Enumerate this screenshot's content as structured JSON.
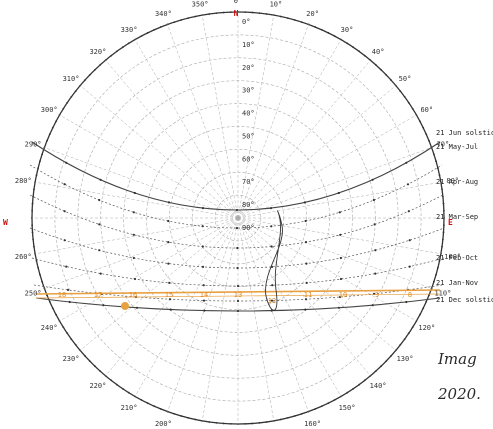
{
  "cardinals": {
    "north": "N",
    "east": "E",
    "west": "W"
  },
  "azimuth_labels": [
    "0°",
    "10°",
    "20°",
    "30°",
    "40°",
    "50°",
    "60°",
    "70°",
    "80°",
    "100°",
    "110°",
    "120°",
    "130°",
    "140°",
    "150°",
    "160°",
    "200°",
    "210°",
    "220°",
    "230°",
    "240°",
    "250°",
    "260°",
    "280°",
    "290°",
    "300°",
    "310°",
    "320°",
    "330°",
    "340°",
    "350°"
  ],
  "altitude_labels": [
    "0°",
    "10°",
    "20°",
    "30°",
    "40°",
    "50°",
    "60°",
    "70°",
    "80°",
    "90°"
  ],
  "date_curves": [
    "21 Jun solstice",
    "21 May-Jul",
    "21 Apr-Aug",
    "21 Mar-Sep",
    "21 Feb-Oct",
    "21 Jan-Nov",
    "21 Dec solstice"
  ],
  "hour_labels": [
    "18",
    "17",
    "16",
    "15",
    "14",
    "13",
    "12",
    "11",
    "10",
    "9",
    "8"
  ],
  "caption": {
    "line1": "Imag",
    "line2": "2020."
  },
  "colors": {
    "grid": "#aaaaaa",
    "curve": "#555555",
    "solstice": "#444444",
    "current": "#e8a040",
    "cardinal": "#d01010"
  }
}
